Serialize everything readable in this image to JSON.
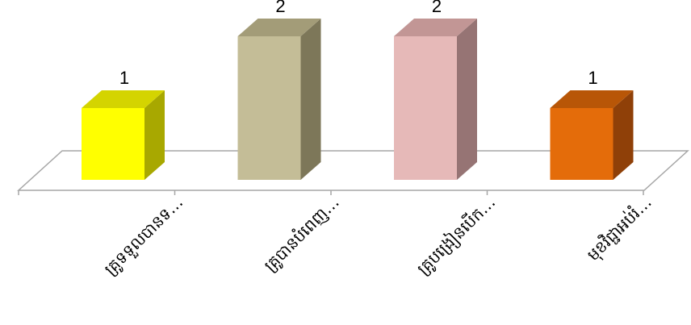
{
  "chart_data": {
    "type": "bar",
    "style": "3d-column",
    "categories": [
      "គ្រូទទួលបានទ…",
      "គ្រូបានបំពេញ…",
      "គ្រូបង្រៀនបើក…",
      "មុខវិជ្ជាអប់រំ…"
    ],
    "values": [
      1,
      2,
      2,
      1
    ],
    "data_labels": [
      "1",
      "2",
      "2",
      "1"
    ],
    "colors": [
      {
        "front": "#FFFF00",
        "side": "#A8A800",
        "top": "#D4D400"
      },
      {
        "front": "#C4BD97",
        "side": "#7D7759",
        "top": "#A39C78"
      },
      {
        "front": "#E6B9B8",
        "side": "#967474",
        "top": "#C29695"
      },
      {
        "front": "#E46C0A",
        "side": "#8F4008",
        "top": "#B85607"
      }
    ],
    "ylim": [
      0,
      2
    ],
    "grid": false,
    "legend": "none"
  }
}
